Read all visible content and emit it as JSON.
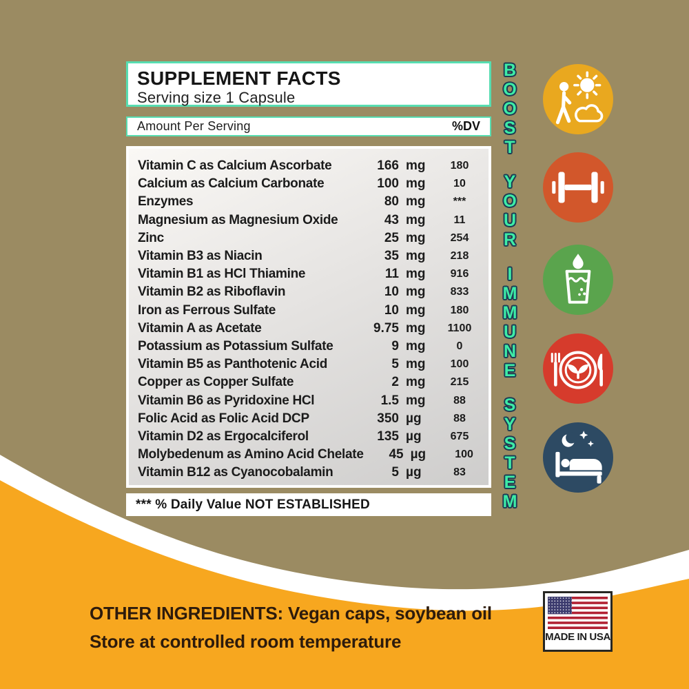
{
  "panel": {
    "title": "SUPPLEMENT FACTS",
    "serving": "Serving size 1 Capsule",
    "columns": {
      "amount": "Amount Per Serving",
      "dv": "%DV"
    },
    "rows": [
      {
        "name": "Vitamin C as Calcium Ascorbate",
        "num": "166",
        "unit": "mg",
        "dv": "180"
      },
      {
        "name": "Calcium as Calcium Carbonate",
        "num": "100",
        "unit": "mg",
        "dv": "10"
      },
      {
        "name": "Enzymes",
        "num": "80",
        "unit": "mg",
        "dv": "***"
      },
      {
        "name": "Magnesium as Magnesium Oxide",
        "num": "43",
        "unit": "mg",
        "dv": "11"
      },
      {
        "name": "Zinc",
        "num": "25",
        "unit": "mg",
        "dv": "254"
      },
      {
        "name": "Vitamin B3 as Niacin",
        "num": "35",
        "unit": "mg",
        "dv": "218"
      },
      {
        "name": "Vitamin B1 as HCl Thiamine",
        "num": "11",
        "unit": "mg",
        "dv": "916"
      },
      {
        "name": "Vitamin B2 as Riboflavin",
        "num": "10",
        "unit": "mg",
        "dv": "833"
      },
      {
        "name": "Iron as Ferrous Sulfate",
        "num": "10",
        "unit": "mg",
        "dv": "180"
      },
      {
        "name": "Vitamin A as Acetate",
        "num": "9.75",
        "unit": "mg",
        "dv": "1100"
      },
      {
        "name": "Potassium as Potassium Sulfate",
        "num": "9",
        "unit": "mg",
        "dv": "0"
      },
      {
        "name": "Vitamin B5 as Panthotenic Acid",
        "num": "5",
        "unit": "mg",
        "dv": "100"
      },
      {
        "name": "Copper as Copper Sulfate",
        "num": "2",
        "unit": "mg",
        "dv": "215"
      },
      {
        "name": "Vitamin B6  as Pyridoxine HCl",
        "num": "1.5",
        "unit": "mg",
        "dv": "88"
      },
      {
        "name": "Folic Acid as Folic Acid DCP",
        "num": "350",
        "unit": "µg",
        "dv": "88"
      },
      {
        "name": "Vitamin D2 as Ergocalciferol",
        "num": "135",
        "unit": "µg",
        "dv": "675"
      },
      {
        "name": "Molybedenum as Amino Acid Chelate",
        "num": "45",
        "unit": "µg",
        "dv": "100"
      },
      {
        "name": "Vitamin B12 as Cyanocobalamin",
        "num": "5",
        "unit": "µg",
        "dv": "83"
      }
    ],
    "footnote": "*** % Daily Value NOT ESTABLISHED"
  },
  "side": {
    "vertical_text": "BOOST YOUR IMMUNE SYSTEM",
    "icons": [
      {
        "name": "outdoor-activity",
        "color": "#e9a81f"
      },
      {
        "name": "dumbbell",
        "color": "#d2572b"
      },
      {
        "name": "hydration-glass",
        "color": "#5aa44d"
      },
      {
        "name": "healthy-plate",
        "color": "#d63b2c"
      },
      {
        "name": "sleep-bed",
        "color": "#2d4a63"
      }
    ]
  },
  "bottom": {
    "line1": "OTHER INGREDIENTS:  Vegan caps, soybean oil",
    "line2": "Store at controlled room temperature",
    "badge": "MADE IN USA"
  },
  "colors": {
    "background_tan": "#9b8b62",
    "wave_white": "#ffffff",
    "wave_orange": "#f7a71f",
    "mint_border": "#57ddb1",
    "tagline_fill": "#3deca6",
    "tagline_outline": "#1d3c54",
    "flag_blue": "#3c3b6e",
    "flag_red": "#b22234"
  }
}
